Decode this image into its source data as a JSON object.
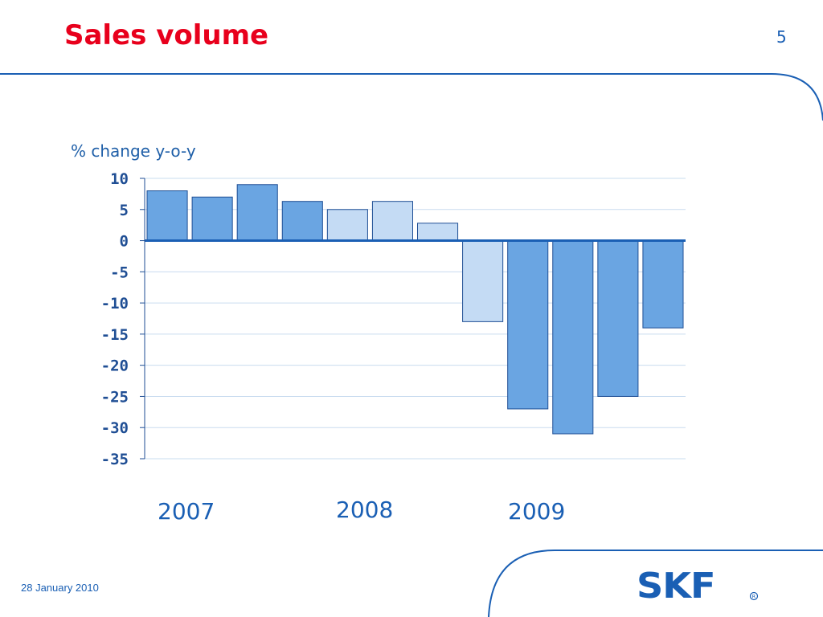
{
  "slide": {
    "title": "Sales volume",
    "page_number": "5",
    "footer_date": "28 January 2010",
    "logo_text": "SKF"
  },
  "colors": {
    "title": "#e8001c",
    "frame_line": "#1a5fb4",
    "bar_dark": "#6aa5e2",
    "bar_light": "#c4dbf4",
    "bar_stroke": "#1f4e94",
    "zero_line": "#1a5fb4",
    "grid": "#c9dcef"
  },
  "chart_data": {
    "type": "bar",
    "ylabel": "% change y-o-y",
    "ylim": [
      -35,
      10
    ],
    "yticks": [
      10,
      5,
      0,
      -5,
      -10,
      -15,
      -20,
      -25,
      -30,
      -35
    ],
    "ytick_labels": [
      "10",
      "5",
      "0",
      "-5",
      "-10",
      "-15",
      "-20",
      "-25",
      "-30",
      "-35"
    ],
    "grid": true,
    "values": [
      8,
      7,
      9,
      6.3,
      5,
      6.3,
      2.8,
      -13,
      -27,
      -31,
      -25,
      -14
    ],
    "shade": [
      "dark",
      "dark",
      "dark",
      "dark",
      "light",
      "light",
      "light",
      "light",
      "dark",
      "dark",
      "dark",
      "dark"
    ],
    "year_labels": [
      "2007",
      "2008",
      "2009"
    ]
  }
}
